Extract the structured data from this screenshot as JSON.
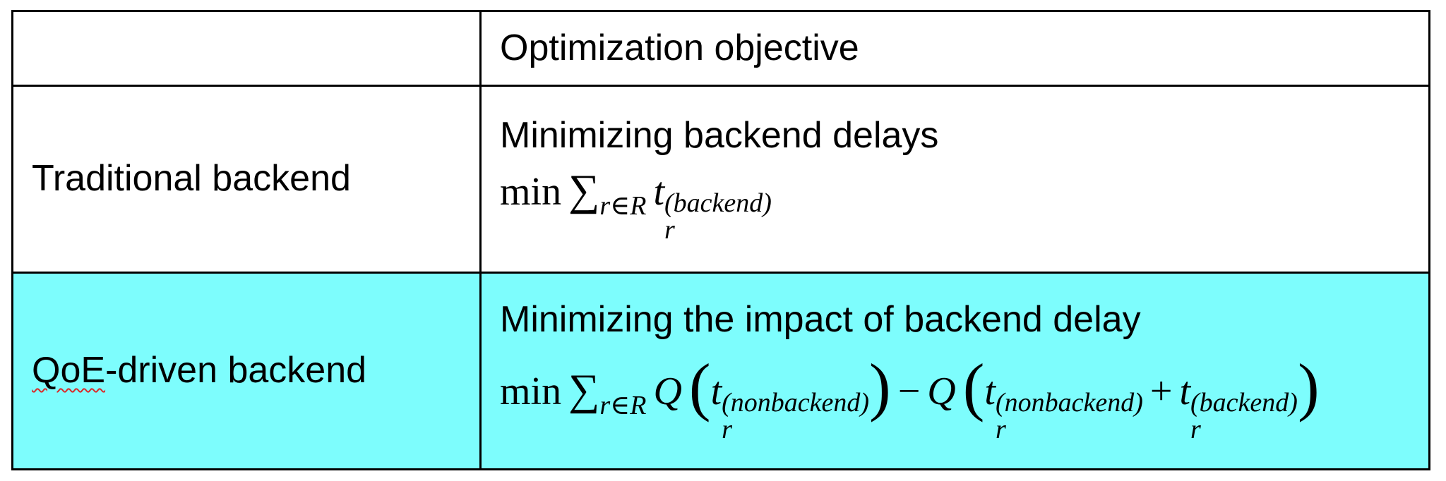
{
  "header": {
    "blank": "",
    "objective_label": "Optimization objective"
  },
  "rows": {
    "traditional": {
      "name": "Traditional backend",
      "description": "Minimizing backend delays",
      "formula": {
        "min": "min",
        "sum": "∑",
        "sub": "r∈R",
        "t": "t",
        "t_sub": "r",
        "t_sup": "(backend)"
      }
    },
    "qoe": {
      "name_prefix": "QoE",
      "name_suffix": "-driven backend",
      "description": "Minimizing the impact of backend delay",
      "formula": {
        "min": "min",
        "sum": "∑",
        "sub": "r∈R",
        "Q": "Q",
        "lparen": "(",
        "rparen": ")",
        "minus": "−",
        "plus": "+",
        "t": "t",
        "t_sub": "r",
        "sup_nonbackend": "(nonbackend)",
        "sup_backend": "(backend)"
      }
    }
  },
  "colors": {
    "highlight_row": "#7dfdfd",
    "border": "#000000",
    "spellcheck_underline": "#d92a2a"
  }
}
